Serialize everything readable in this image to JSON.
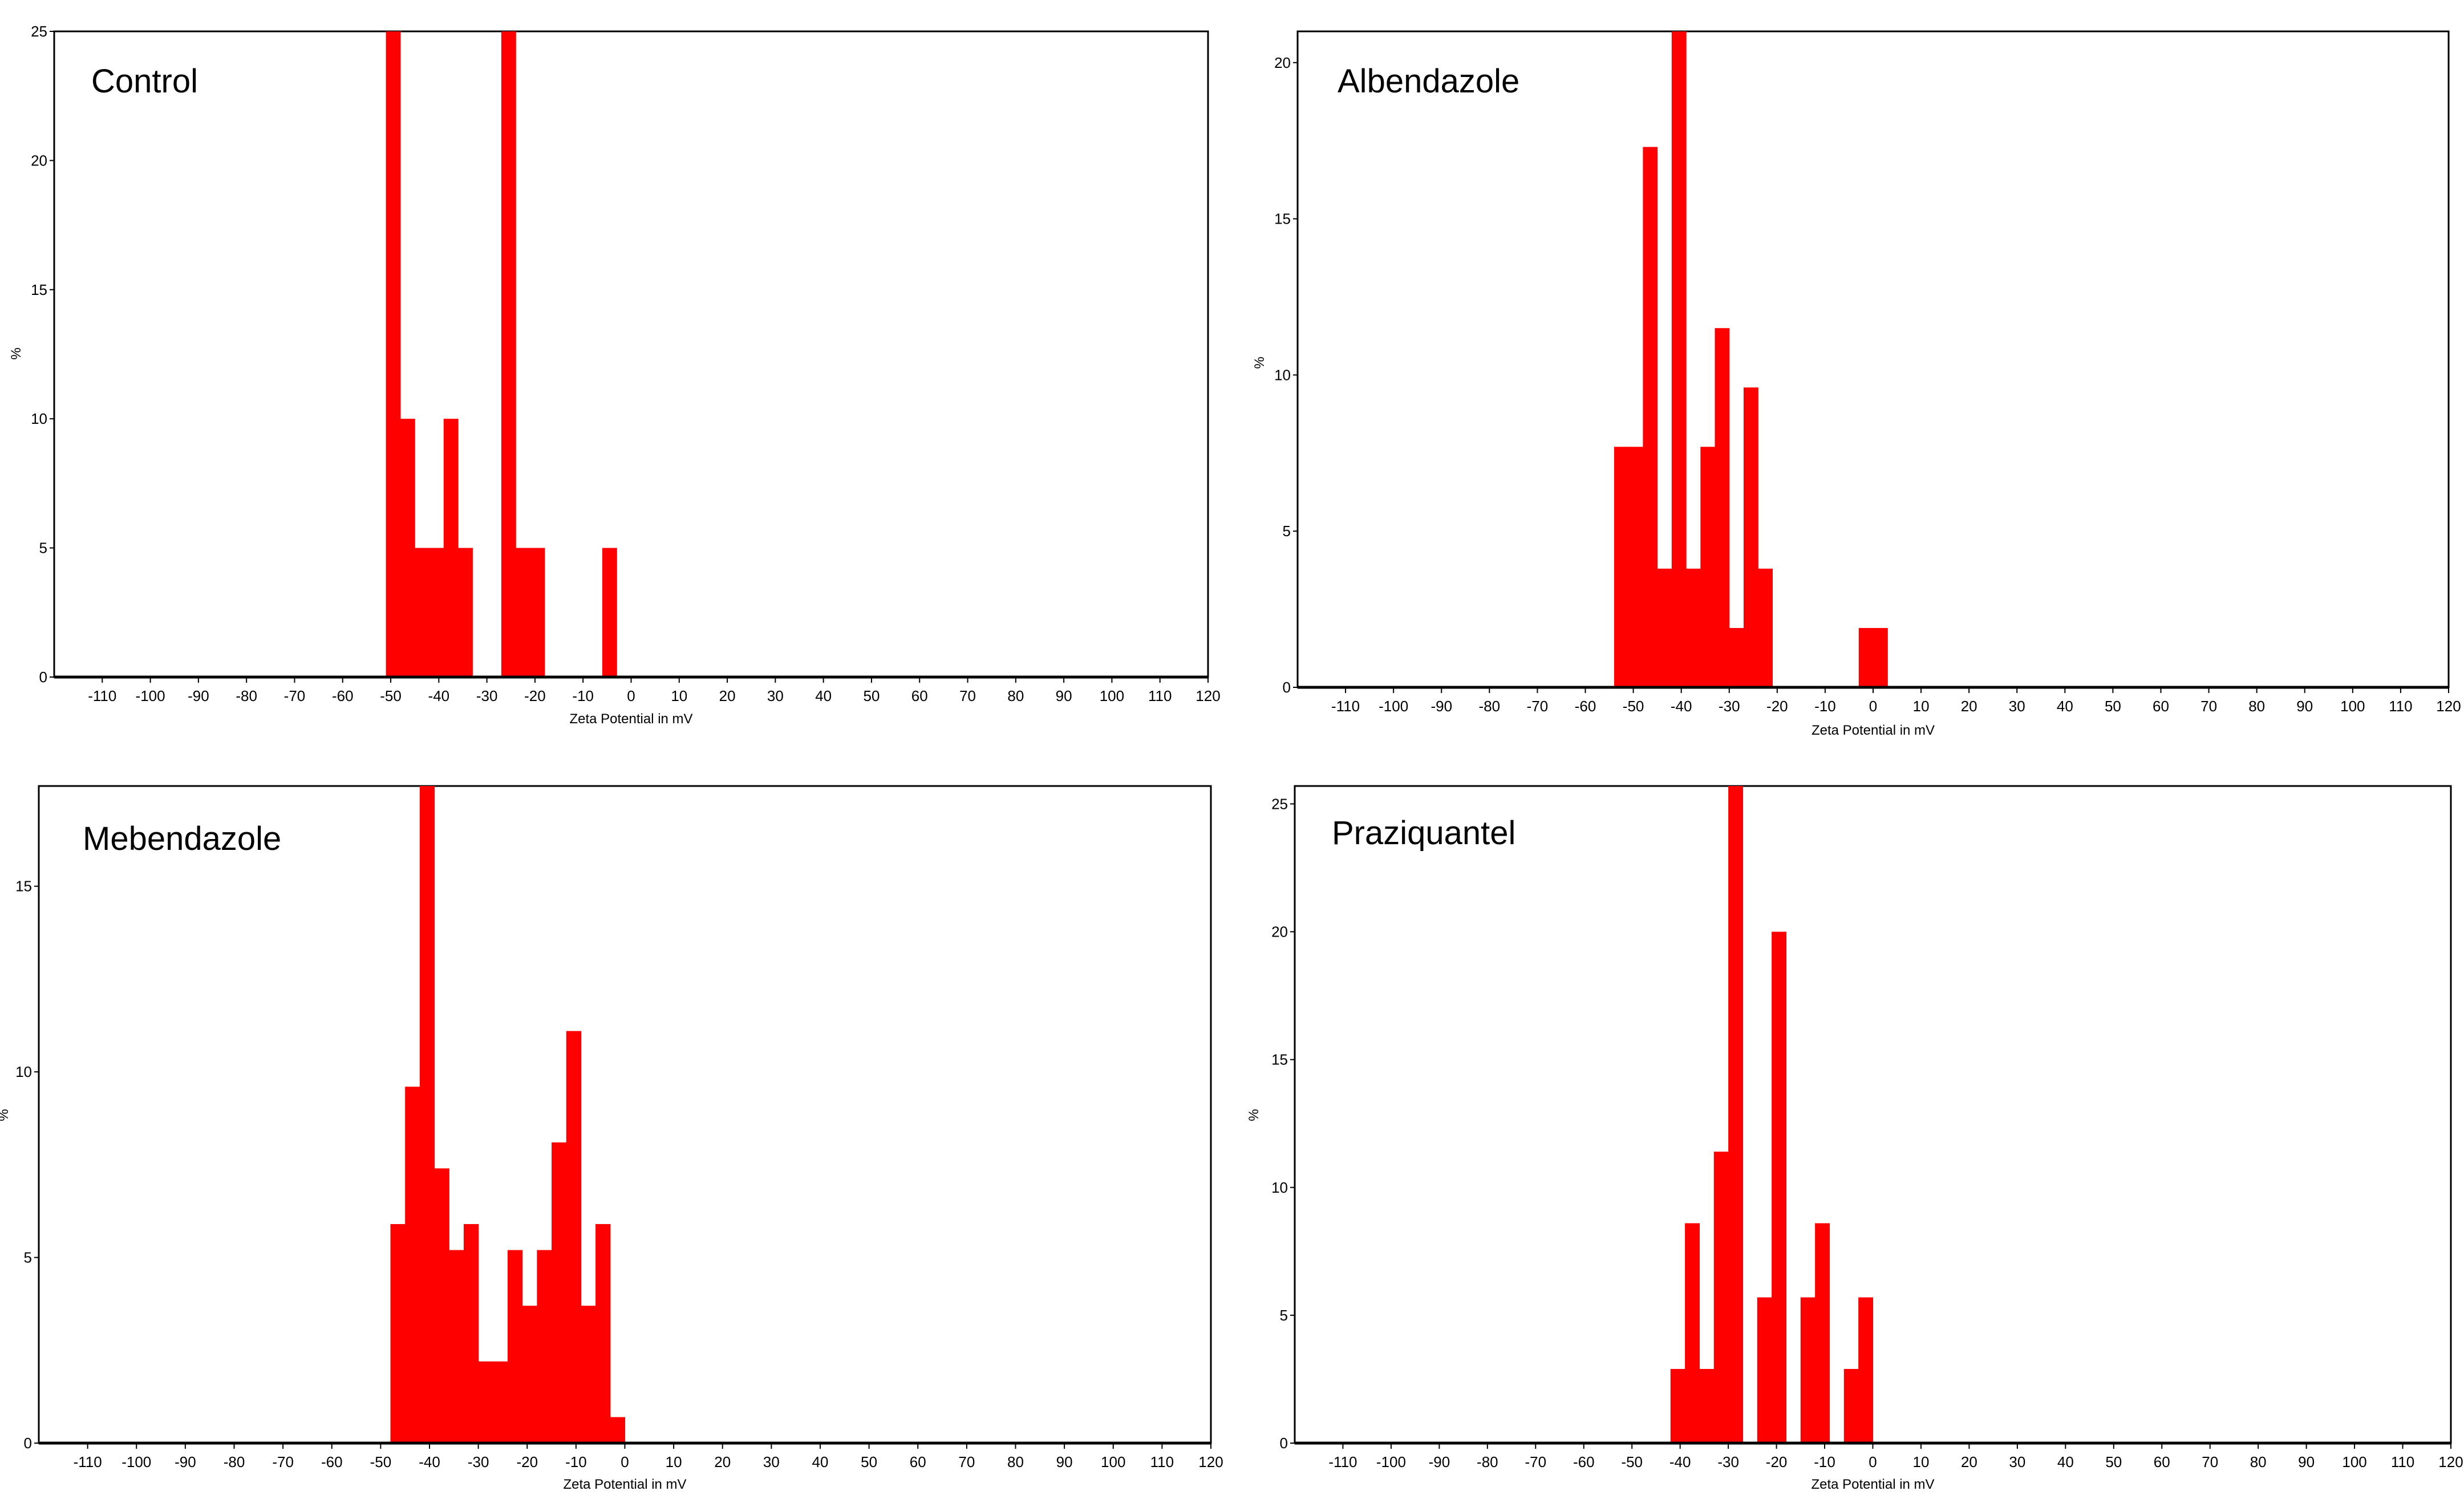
{
  "figure": {
    "bar_color": "#ff0000",
    "frame_color": "#000000",
    "background": "#ffffff"
  },
  "chart_data": [
    {
      "type": "bar",
      "title": "Control",
      "xlabel": "Zeta Potential  in  mV",
      "ylabel": "%",
      "xlim": [
        -120,
        120
      ],
      "ylim": [
        0,
        25
      ],
      "grid": false,
      "xticks": [
        -110,
        -100,
        -90,
        -80,
        -70,
        -60,
        -50,
        -40,
        -30,
        -20,
        -10,
        0,
        10,
        20,
        30,
        40,
        50,
        60,
        70,
        80,
        90,
        100,
        110,
        120
      ],
      "yticks": [
        0,
        5,
        10,
        15,
        20,
        25
      ],
      "bin_width": 3,
      "bins": [
        {
          "x": -51,
          "y": 25
        },
        {
          "x": -48,
          "y": 10
        },
        {
          "x": -45,
          "y": 5
        },
        {
          "x": -42,
          "y": 5
        },
        {
          "x": -39,
          "y": 10
        },
        {
          "x": -36,
          "y": 5
        },
        {
          "x": -27,
          "y": 25
        },
        {
          "x": -24,
          "y": 5
        },
        {
          "x": -21,
          "y": 5
        },
        {
          "x": -6,
          "y": 5
        }
      ]
    },
    {
      "type": "bar",
      "title": "Albendazole",
      "xlabel": "Zeta Potential  in  mV",
      "ylabel": "%",
      "xlim": [
        -120,
        120
      ],
      "ylim": [
        0,
        21
      ],
      "grid": false,
      "xticks": [
        -110,
        -100,
        -90,
        -80,
        -70,
        -60,
        -50,
        -40,
        -30,
        -20,
        -10,
        0,
        10,
        20,
        30,
        40,
        50,
        60,
        70,
        80,
        90,
        100,
        110,
        120
      ],
      "yticks": [
        0,
        5,
        10,
        15,
        20
      ],
      "bin_width": 3,
      "bins": [
        {
          "x": -54,
          "y": 7.7
        },
        {
          "x": -51,
          "y": 7.7
        },
        {
          "x": -48,
          "y": 17.3
        },
        {
          "x": -45,
          "y": 3.8
        },
        {
          "x": -42,
          "y": 21
        },
        {
          "x": -39,
          "y": 3.8
        },
        {
          "x": -36,
          "y": 7.7
        },
        {
          "x": -33,
          "y": 11.5
        },
        {
          "x": -30,
          "y": 1.9
        },
        {
          "x": -27,
          "y": 9.6
        },
        {
          "x": -24,
          "y": 3.8
        },
        {
          "x": -3,
          "y": 1.9
        },
        {
          "x": 0,
          "y": 1.9
        }
      ]
    },
    {
      "type": "bar",
      "title": "Mebendazole",
      "xlabel": "Zeta Potential  in  mV",
      "ylabel": "%",
      "xlim": [
        -120,
        120
      ],
      "ylim": [
        0,
        17.7
      ],
      "grid": false,
      "xticks": [
        -110,
        -100,
        -90,
        -80,
        -70,
        -60,
        -50,
        -40,
        -30,
        -20,
        -10,
        0,
        10,
        20,
        30,
        40,
        50,
        60,
        70,
        80,
        90,
        100,
        110,
        120
      ],
      "yticks": [
        0,
        5,
        10,
        15
      ],
      "bin_width": 3,
      "bins": [
        {
          "x": -48,
          "y": 5.9
        },
        {
          "x": -45,
          "y": 9.6
        },
        {
          "x": -42,
          "y": 17.7
        },
        {
          "x": -39,
          "y": 7.4
        },
        {
          "x": -36,
          "y": 5.2
        },
        {
          "x": -33,
          "y": 5.9
        },
        {
          "x": -30,
          "y": 2.2
        },
        {
          "x": -27,
          "y": 2.2
        },
        {
          "x": -24,
          "y": 5.2
        },
        {
          "x": -21,
          "y": 3.7
        },
        {
          "x": -18,
          "y": 5.2
        },
        {
          "x": -15,
          "y": 8.1
        },
        {
          "x": -12,
          "y": 11.1
        },
        {
          "x": -9,
          "y": 3.7
        },
        {
          "x": -6,
          "y": 5.9
        },
        {
          "x": -3,
          "y": 0.7
        }
      ]
    },
    {
      "type": "bar",
      "title": "Praziquantel",
      "xlabel": "Zeta Potential  in  mV",
      "ylabel": "%",
      "xlim": [
        -120,
        120
      ],
      "ylim": [
        0,
        25.7
      ],
      "grid": false,
      "xticks": [
        -110,
        -100,
        -90,
        -80,
        -70,
        -60,
        -50,
        -40,
        -30,
        -20,
        -10,
        0,
        10,
        20,
        30,
        40,
        50,
        60,
        70,
        80,
        90,
        100,
        110,
        120
      ],
      "yticks": [
        0,
        5,
        10,
        15,
        20,
        25
      ],
      "bin_width": 3,
      "bins": [
        {
          "x": -42,
          "y": 2.9
        },
        {
          "x": -39,
          "y": 8.6
        },
        {
          "x": -36,
          "y": 2.9
        },
        {
          "x": -33,
          "y": 11.4
        },
        {
          "x": -30,
          "y": 25.7
        },
        {
          "x": -24,
          "y": 5.7
        },
        {
          "x": -21,
          "y": 20
        },
        {
          "x": -15,
          "y": 5.7
        },
        {
          "x": -12,
          "y": 8.6
        },
        {
          "x": -6,
          "y": 2.9
        },
        {
          "x": -3,
          "y": 5.7
        }
      ]
    }
  ]
}
